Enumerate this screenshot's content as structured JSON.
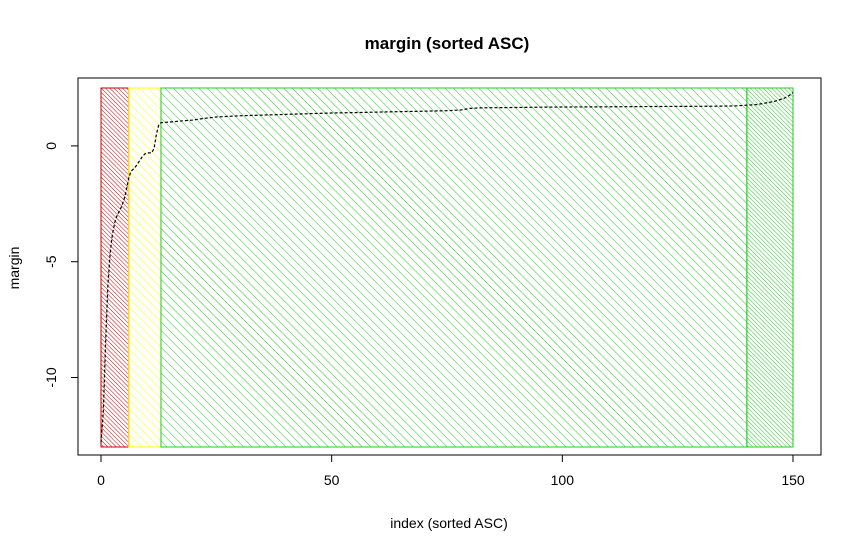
{
  "chart_data": {
    "type": "line",
    "title": "margin (sorted ASC)",
    "xlabel": "index (sorted ASC)",
    "ylabel": "margin",
    "xlim": [
      0,
      150
    ],
    "ylim": [
      -13,
      2.5
    ],
    "x_ticks": [
      0,
      50,
      100,
      150
    ],
    "x_tick_labels": [
      "0",
      "50",
      "100",
      "150"
    ],
    "y_ticks": [
      -10,
      -5,
      0
    ],
    "y_tick_labels": [
      "-10",
      "-5",
      "0"
    ],
    "grid": false,
    "line_style": "dashed",
    "regions": [
      {
        "x_from": 0,
        "x_to": 6,
        "color": "#cc0000",
        "hatch": "dense"
      },
      {
        "x_from": 6,
        "x_to": 13,
        "color": "#ffff00",
        "hatch": "medium"
      },
      {
        "x_from": 13,
        "x_to": 140,
        "color": "#22cc22",
        "hatch": "medium"
      },
      {
        "x_from": 140,
        "x_to": 150,
        "color": "#22cc22",
        "hatch": "dense"
      }
    ],
    "series": [
      {
        "x": [
          0,
          0.5,
          1,
          1.5,
          2,
          2.5,
          3,
          3.5,
          4,
          4.5,
          5,
          5.5,
          6,
          6.5,
          7,
          7.5,
          8,
          8.5,
          9,
          9.5,
          10,
          10.5,
          11,
          11.5,
          12,
          12.5,
          13,
          14,
          15,
          16,
          17,
          18,
          19,
          20,
          22,
          25,
          30,
          35,
          40,
          45,
          50,
          55,
          60,
          65,
          70,
          75,
          78,
          80,
          82,
          85,
          90,
          95,
          100,
          110,
          120,
          130,
          135,
          138,
          140,
          142,
          144,
          146,
          148,
          149,
          150
        ],
        "y": [
          -12.8,
          -11.5,
          -8.5,
          -6.0,
          -4.6,
          -3.8,
          -3.3,
          -3.0,
          -2.8,
          -2.6,
          -2.3,
          -1.9,
          -1.4,
          -1.1,
          -1.0,
          -0.9,
          -0.75,
          -0.6,
          -0.45,
          -0.35,
          -0.3,
          -0.3,
          -0.3,
          -0.1,
          0.5,
          0.9,
          1.0,
          1.02,
          1.03,
          1.05,
          1.07,
          1.09,
          1.1,
          1.12,
          1.18,
          1.25,
          1.3,
          1.33,
          1.36,
          1.39,
          1.42,
          1.44,
          1.46,
          1.48,
          1.5,
          1.52,
          1.55,
          1.62,
          1.64,
          1.65,
          1.66,
          1.67,
          1.68,
          1.69,
          1.7,
          1.71,
          1.72,
          1.73,
          1.76,
          1.78,
          1.85,
          1.92,
          2.05,
          2.15,
          2.3
        ]
      }
    ]
  }
}
